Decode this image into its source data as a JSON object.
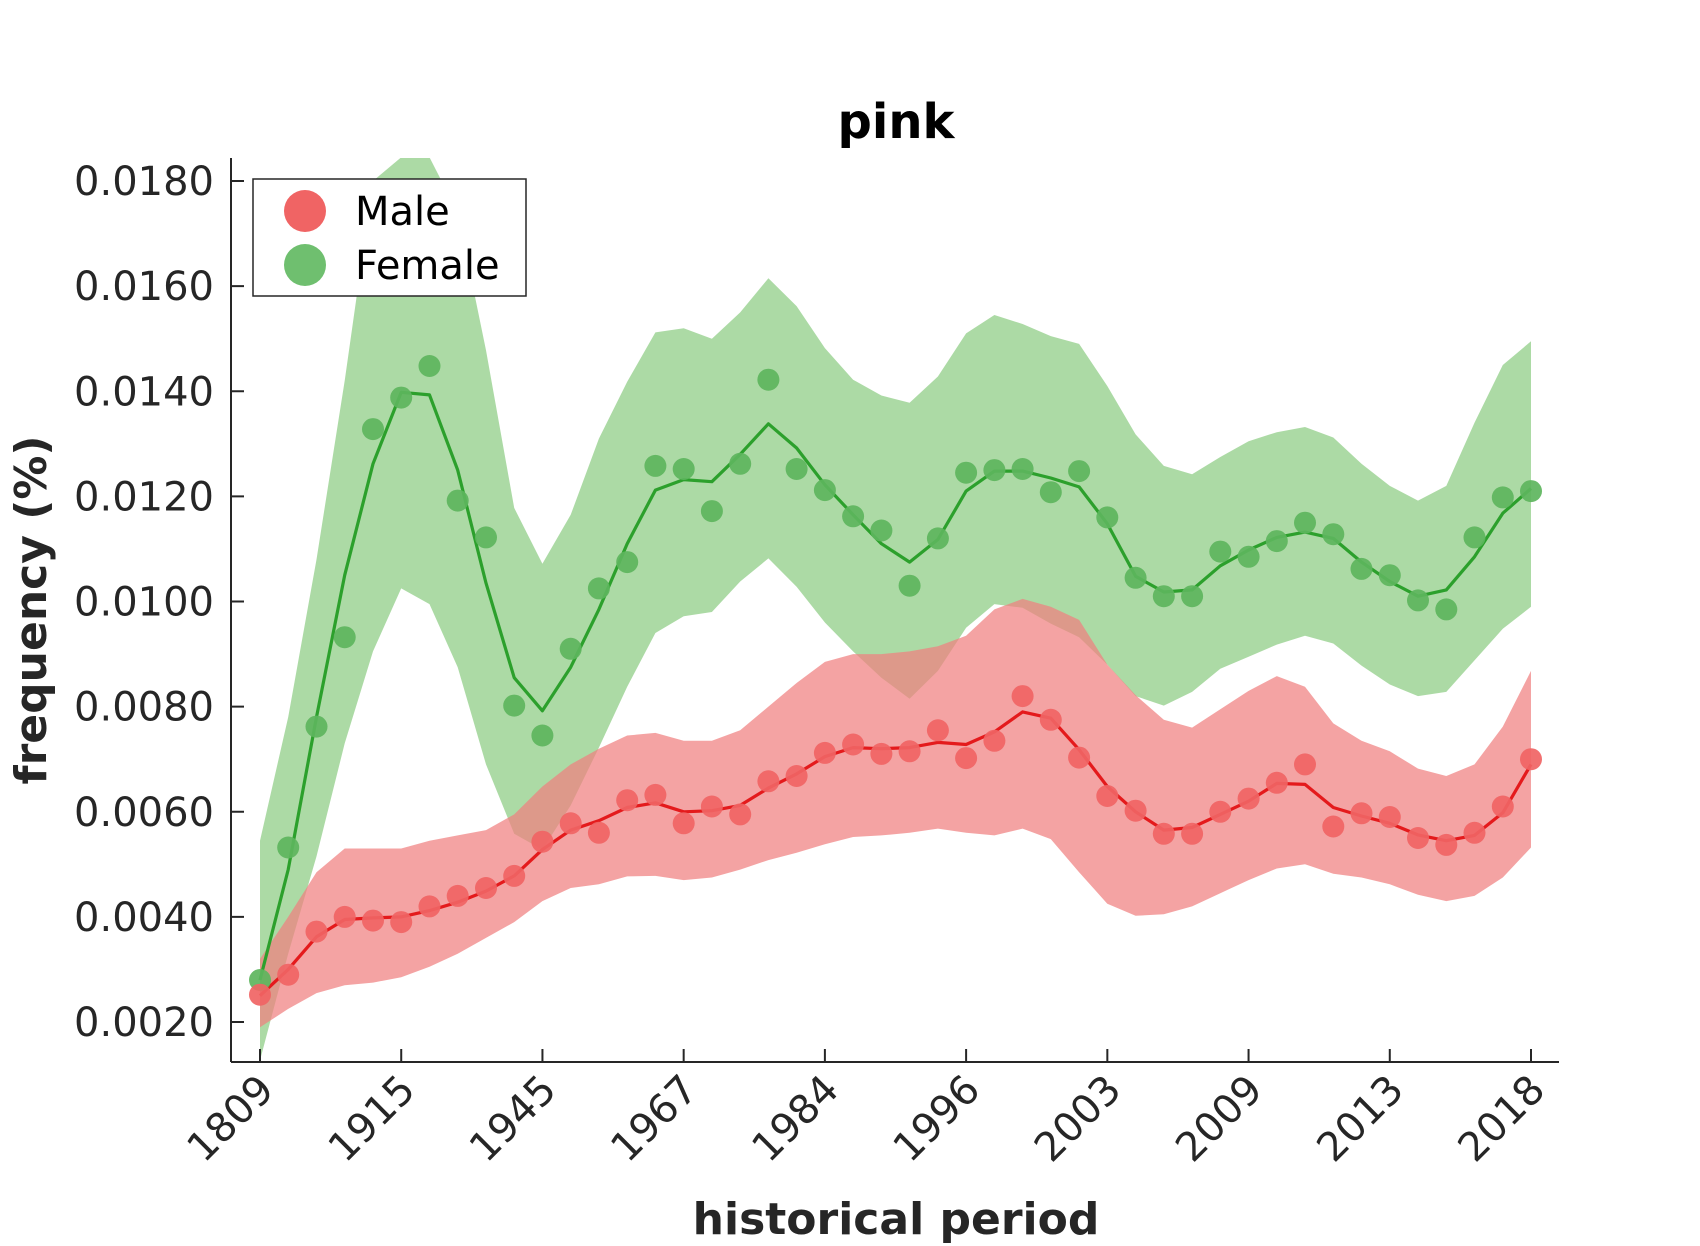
{
  "chart_data": {
    "type": "line",
    "title": "pink",
    "xlabel": "historical period",
    "ylabel": "frequency (%)",
    "x_tick_labels": [
      "1809",
      "1915",
      "1945",
      "1967",
      "1984",
      "1996",
      "2003",
      "2009",
      "2013",
      "2018"
    ],
    "y_tick_labels": [
      "0.0020",
      "0.0040",
      "0.0060",
      "0.0080",
      "0.0100",
      "0.0120",
      "0.0140",
      "0.0160",
      "0.0180"
    ],
    "y_ticks": [
      0.002,
      0.004,
      0.006,
      0.008,
      0.01,
      0.012,
      0.014,
      0.016,
      0.018
    ],
    "ylim": [
      0.00127,
      0.01845
    ],
    "n_points": 46,
    "legend_position": "top-left",
    "grid": false,
    "series": [
      {
        "name": "Male",
        "color": "#e41a1c",
        "marker_color": "#f06464",
        "band_color": "#f08080",
        "points": [
          0.00252,
          0.0029,
          0.00372,
          0.004,
          0.00393,
          0.0039,
          0.0042,
          0.0044,
          0.00455,
          0.00478,
          0.00543,
          0.00578,
          0.0056,
          0.00622,
          0.00632,
          0.00578,
          0.0061,
          0.00595,
          0.00658,
          0.00668,
          0.00712,
          0.00728,
          0.0071,
          0.00715,
          0.00755,
          0.00702,
          0.00735,
          0.0082,
          0.00775,
          0.00703,
          0.0063,
          0.00602,
          0.00558,
          0.00558,
          0.006,
          0.00625,
          0.00655,
          0.0069,
          0.00572,
          0.00597,
          0.0059,
          0.0055,
          0.00537,
          0.0056,
          0.0061,
          0.007
        ],
        "trend": [
          0.0025,
          0.003,
          0.00362,
          0.00395,
          0.00398,
          0.004,
          0.00412,
          0.00428,
          0.00449,
          0.00478,
          0.00528,
          0.00565,
          0.00583,
          0.00608,
          0.00617,
          0.006,
          0.00602,
          0.00612,
          0.00645,
          0.00672,
          0.00705,
          0.00722,
          0.0072,
          0.00722,
          0.00732,
          0.00728,
          0.00752,
          0.0079,
          0.00778,
          0.00718,
          0.00648,
          0.006,
          0.00565,
          0.0057,
          0.00595,
          0.0062,
          0.00654,
          0.00652,
          0.00608,
          0.00592,
          0.00578,
          0.00556,
          0.00545,
          0.00555,
          0.00598,
          0.0069
        ],
        "lower": [
          0.0019,
          0.00225,
          0.00255,
          0.0027,
          0.00275,
          0.00285,
          0.00305,
          0.0033,
          0.0036,
          0.0039,
          0.0043,
          0.00455,
          0.00462,
          0.00477,
          0.00478,
          0.0047,
          0.00475,
          0.0049,
          0.00508,
          0.00522,
          0.00538,
          0.00552,
          0.00555,
          0.0056,
          0.00568,
          0.0056,
          0.00555,
          0.00568,
          0.00548,
          0.00485,
          0.00425,
          0.00402,
          0.00405,
          0.0042,
          0.00445,
          0.0047,
          0.00492,
          0.005,
          0.00482,
          0.00475,
          0.00462,
          0.00442,
          0.0043,
          0.0044,
          0.00475,
          0.00532
        ],
        "upper": [
          0.0032,
          0.004,
          0.00485,
          0.0053,
          0.0053,
          0.0053,
          0.00545,
          0.00555,
          0.00565,
          0.00595,
          0.00648,
          0.0069,
          0.0072,
          0.00745,
          0.0075,
          0.00735,
          0.00735,
          0.00755,
          0.008,
          0.00845,
          0.00885,
          0.009,
          0.009,
          0.00905,
          0.00915,
          0.00935,
          0.00985,
          0.01005,
          0.0099,
          0.00965,
          0.0088,
          0.00822,
          0.00775,
          0.0076,
          0.00795,
          0.0083,
          0.00858,
          0.00838,
          0.00768,
          0.00735,
          0.00715,
          0.00682,
          0.00668,
          0.0069,
          0.00762,
          0.00868
        ]
      },
      {
        "name": "Female",
        "color": "#2ca02c",
        "marker_color": "#5db55d",
        "band_color": "#90cd87",
        "points": [
          0.0028,
          0.00532,
          0.00762,
          0.00932,
          0.01328,
          0.01388,
          0.01448,
          0.01192,
          0.01122,
          0.00802,
          0.00745,
          0.0091,
          0.01025,
          0.01075,
          0.01258,
          0.01252,
          0.01172,
          0.01262,
          0.01422,
          0.01252,
          0.01212,
          0.01162,
          0.01135,
          0.0103,
          0.0112,
          0.01245,
          0.0125,
          0.01252,
          0.01208,
          0.01248,
          0.0116,
          0.01045,
          0.0101,
          0.0101,
          0.01095,
          0.01085,
          0.01115,
          0.0115,
          0.01128,
          0.01062,
          0.0105,
          0.01002,
          0.00985,
          0.01122,
          0.01198,
          0.0121
        ],
        "trend": [
          0.0028,
          0.0049,
          0.0078,
          0.0105,
          0.01262,
          0.01398,
          0.01393,
          0.0125,
          0.01035,
          0.00855,
          0.00792,
          0.00875,
          0.00985,
          0.0111,
          0.01212,
          0.01232,
          0.01228,
          0.0128,
          0.01338,
          0.01292,
          0.01222,
          0.01165,
          0.0111,
          0.01075,
          0.01118,
          0.0121,
          0.01248,
          0.01248,
          0.01235,
          0.01218,
          0.01148,
          0.01048,
          0.01018,
          0.01022,
          0.01068,
          0.01098,
          0.01122,
          0.01132,
          0.0112,
          0.01075,
          0.01038,
          0.0101,
          0.01022,
          0.01085,
          0.01168,
          0.01215
        ],
        "lower": [
          0.00127,
          0.0033,
          0.00515,
          0.0073,
          0.00905,
          0.01025,
          0.00995,
          0.00875,
          0.0069,
          0.00558,
          0.00528,
          0.00612,
          0.00722,
          0.00838,
          0.0094,
          0.00972,
          0.0098,
          0.01038,
          0.01082,
          0.01028,
          0.0096,
          0.00905,
          0.00855,
          0.00815,
          0.00868,
          0.0095,
          0.00995,
          0.00988,
          0.00958,
          0.00932,
          0.0088,
          0.0082,
          0.00802,
          0.00828,
          0.00872,
          0.00895,
          0.00918,
          0.00935,
          0.0092,
          0.00878,
          0.00842,
          0.0082,
          0.00828,
          0.00888,
          0.00948,
          0.0099
        ],
        "upper": [
          0.00545,
          0.0078,
          0.0108,
          0.0142,
          0.018,
          0.01845,
          0.01845,
          0.0174,
          0.01478,
          0.01178,
          0.01072,
          0.01165,
          0.0131,
          0.01418,
          0.01512,
          0.0152,
          0.015,
          0.0155,
          0.01615,
          0.01562,
          0.01482,
          0.01422,
          0.01392,
          0.01378,
          0.01428,
          0.0151,
          0.01545,
          0.01528,
          0.01505,
          0.0149,
          0.0141,
          0.01318,
          0.01258,
          0.01242,
          0.01275,
          0.01305,
          0.01322,
          0.01332,
          0.01312,
          0.01262,
          0.0122,
          0.01192,
          0.0122,
          0.0134,
          0.0145,
          0.01495
        ]
      }
    ]
  }
}
